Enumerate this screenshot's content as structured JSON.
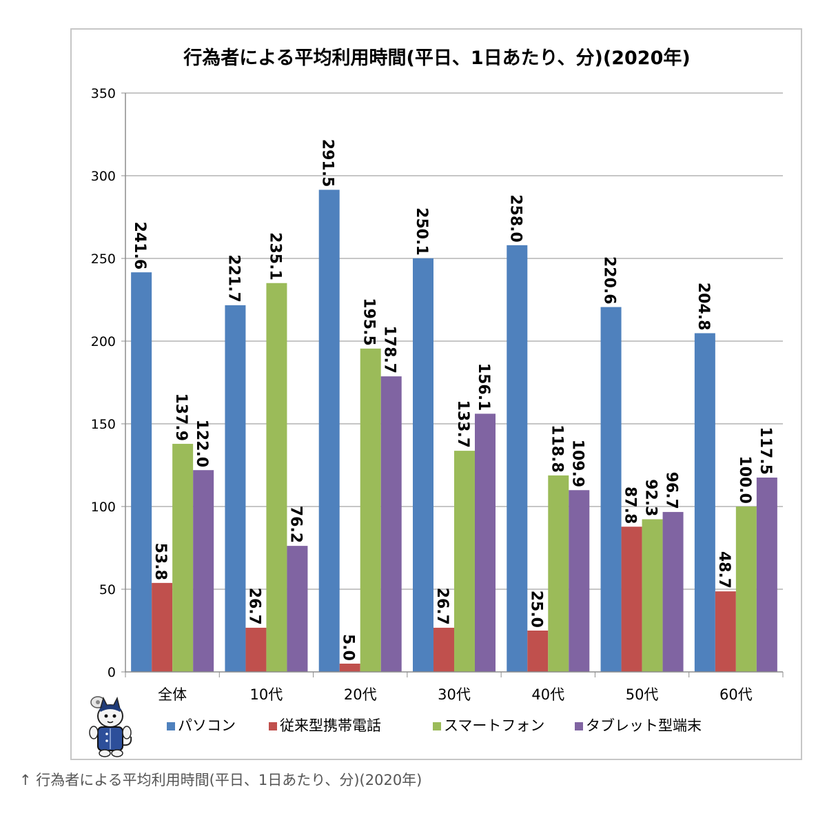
{
  "chart_data": {
    "type": "bar",
    "title": "行為者による平均利用時間(平日、1日あたり、分)(2020年)",
    "xlabel": "",
    "ylabel": "",
    "ylim": [
      0,
      350
    ],
    "yticks": [
      "0",
      "50",
      "100",
      "150",
      "200",
      "250",
      "300",
      "350"
    ],
    "grid": true,
    "legend_position": "bottom",
    "categories": [
      "全体",
      "10代",
      "20代",
      "30代",
      "40代",
      "50代",
      "60代"
    ],
    "series": [
      {
        "name": "パソコン",
        "color": "#4f81bd",
        "values": [
          241.6,
          221.7,
          291.5,
          250.1,
          258.0,
          220.6,
          204.8
        ],
        "labels": [
          "241.6",
          "221.7",
          "291.5",
          "250.1",
          "258.0",
          "220.6",
          "204.8"
        ]
      },
      {
        "name": "従来型携帯電話",
        "color": "#c0504d",
        "values": [
          53.8,
          26.7,
          5.0,
          26.7,
          25.0,
          87.8,
          48.7
        ],
        "labels": [
          "53.8",
          "26.7",
          "5.0",
          "26.7",
          "25.0",
          "87.8",
          "48.7"
        ]
      },
      {
        "name": "スマートフォン",
        "color": "#9bbb59",
        "values": [
          137.9,
          235.1,
          195.5,
          133.7,
          118.8,
          92.3,
          100.0
        ],
        "labels": [
          "137.9",
          "235.1",
          "195.5",
          "133.7",
          "118.8",
          "92.3",
          "100.0"
        ]
      },
      {
        "name": "タブレット型端末",
        "color": "#8064a2",
        "values": [
          122.0,
          76.2,
          178.7,
          156.1,
          109.9,
          96.7,
          117.5
        ],
        "labels": [
          "122.0",
          "76.2",
          "178.7",
          "156.1",
          "109.9",
          "96.7",
          "117.5"
        ]
      }
    ]
  },
  "caption": "↑ 行為者による平均利用時間(平日、1日あたり、分)(2020年)",
  "mascot_icon": "cat-mascot-icon"
}
